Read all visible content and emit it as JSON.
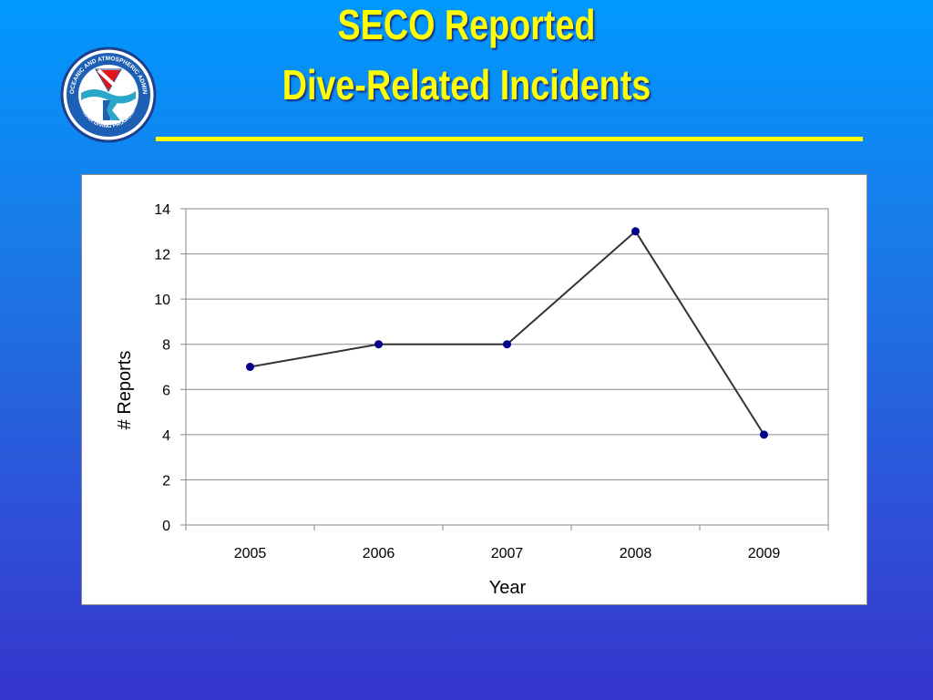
{
  "slide": {
    "title_line1": "SECO Reported",
    "title_line2": "Dive-Related Incidents",
    "title_color": "#ffff00",
    "accent_rule_color": "#ffff00"
  },
  "logo": {
    "icon": "noaa-diving-program-seal",
    "ring_text": "NATIONAL OCEANIC AND ATMOSPHERIC ADMINISTRATION",
    "bottom_text": "NOAA DIVING PROGRAM"
  },
  "chart_data": {
    "type": "line",
    "categories": [
      "2005",
      "2006",
      "2007",
      "2008",
      "2009"
    ],
    "values": [
      7,
      8,
      8,
      13,
      4
    ],
    "xlabel": "Year",
    "ylabel": "# Reports",
    "ylim": [
      0,
      14
    ],
    "yticks": [
      0,
      2,
      4,
      6,
      8,
      10,
      12,
      14
    ],
    "grid": "horizontal",
    "line_color": "#333333",
    "marker_color": "#00008b"
  }
}
